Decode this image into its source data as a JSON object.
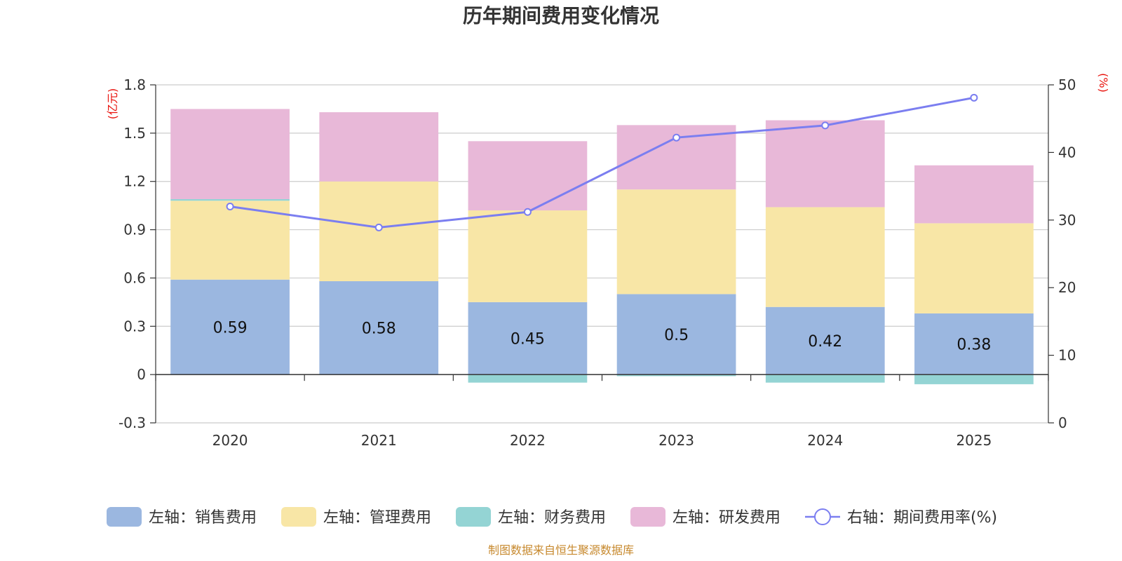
{
  "chart_data": {
    "type": "bar",
    "stacked": true,
    "title": "历年期间费用变化情况",
    "categories": [
      "2020",
      "2021",
      "2022",
      "2023",
      "2024",
      "2025"
    ],
    "left_axis": {
      "unit": "(亿元)",
      "ylim": [
        -0.3,
        1.8
      ],
      "ticks": [
        -0.3,
        0,
        0.3,
        0.6,
        0.9,
        1.2,
        1.5,
        1.8
      ],
      "tick_labels": [
        "-0.3",
        "0",
        "0.3",
        "0.6",
        "0.9",
        "1.2",
        "1.5",
        "1.8"
      ]
    },
    "right_axis": {
      "unit": "(%)",
      "ylim": [
        0,
        50
      ],
      "ticks": [
        0,
        10,
        20,
        30,
        40,
        50
      ],
      "tick_labels": [
        "0",
        "10",
        "20",
        "30",
        "40",
        "50"
      ]
    },
    "series": [
      {
        "name": "左轴：销售费用",
        "axis": "left",
        "type": "bar",
        "color": "#9bb7e0",
        "values": [
          0.59,
          0.58,
          0.45,
          0.5,
          0.42,
          0.38
        ],
        "labels": [
          "0.59",
          "0.58",
          "0.45",
          "0.5",
          "0.42",
          "0.38"
        ]
      },
      {
        "name": "左轴：管理费用",
        "axis": "left",
        "type": "bar",
        "color": "#f8e6a6",
        "values": [
          0.49,
          0.62,
          0.57,
          0.65,
          0.62,
          0.56
        ]
      },
      {
        "name": "左轴：财务费用",
        "axis": "left",
        "type": "bar",
        "color": "#94d4d4",
        "values": [
          0.01,
          0.0,
          -0.05,
          -0.01,
          -0.05,
          -0.06
        ]
      },
      {
        "name": "左轴：研发费用",
        "axis": "left",
        "type": "bar",
        "color": "#e8b8d8",
        "values": [
          0.56,
          0.43,
          0.43,
          0.4,
          0.54,
          0.36
        ]
      },
      {
        "name": "右轴：期间费用率(%)",
        "axis": "right",
        "type": "line",
        "color": "#7b7ef0",
        "values": [
          32.0,
          28.9,
          31.2,
          42.2,
          44.0,
          48.1
        ]
      }
    ],
    "legend_position": "bottom",
    "source": "制图数据来自恒生聚源数据库"
  }
}
